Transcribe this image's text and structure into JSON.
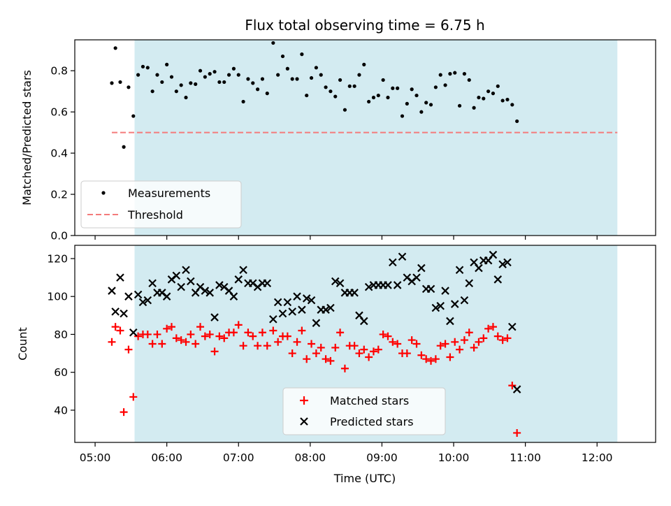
{
  "chart_data": [
    {
      "type": "scatter",
      "title": "Flux total observing time = 6.75 h",
      "ylabel": "Matched/Predicted stars",
      "ylim": [
        0,
        0.95
      ],
      "yticks": [
        "0.0",
        "0.2",
        "0.4",
        "0.6",
        "0.8"
      ],
      "shaded_span": {
        "start": "05:33",
        "end": "12:17",
        "color": "#d3ebf1"
      },
      "legend": {
        "placement": "lower-left"
      },
      "threshold": {
        "name": "Threshold",
        "value": 0.5,
        "x_start": "05:14",
        "x_end": "12:17",
        "color": "#f47b7b",
        "style": "dashed"
      },
      "series": [
        {
          "name": "Measurements",
          "color": "#000000",
          "marker": "dot",
          "points": [
            [
              "05:14",
              0.74
            ],
            [
              "05:17",
              0.91
            ],
            [
              "05:21",
              0.745
            ],
            [
              "05:24",
              0.43
            ],
            [
              "05:28",
              0.72
            ],
            [
              "05:32",
              0.58
            ],
            [
              "05:36",
              0.78
            ],
            [
              "05:40",
              0.82
            ],
            [
              "05:44",
              0.815
            ],
            [
              "05:48",
              0.7
            ],
            [
              "05:52",
              0.78
            ],
            [
              "05:56",
              0.745
            ],
            [
              "06:00",
              0.83
            ],
            [
              "06:04",
              0.77
            ],
            [
              "06:08",
              0.7
            ],
            [
              "06:12",
              0.73
            ],
            [
              "06:16",
              0.67
            ],
            [
              "06:20",
              0.74
            ],
            [
              "06:24",
              0.735
            ],
            [
              "06:28",
              0.8
            ],
            [
              "06:32",
              0.77
            ],
            [
              "06:36",
              0.785
            ],
            [
              "06:40",
              0.795
            ],
            [
              "06:44",
              0.745
            ],
            [
              "06:48",
              0.745
            ],
            [
              "06:52",
              0.78
            ],
            [
              "06:56",
              0.81
            ],
            [
              "07:00",
              0.78
            ],
            [
              "07:04",
              0.65
            ],
            [
              "07:08",
              0.76
            ],
            [
              "07:12",
              0.74
            ],
            [
              "07:16",
              0.71
            ],
            [
              "07:20",
              0.76
            ],
            [
              "07:24",
              0.69
            ],
            [
              "07:29",
              0.935
            ],
            [
              "07:33",
              0.78
            ],
            [
              "07:37",
              0.87
            ],
            [
              "07:41",
              0.81
            ],
            [
              "07:45",
              0.76
            ],
            [
              "07:49",
              0.76
            ],
            [
              "07:53",
              0.88
            ],
            [
              "07:57",
              0.68
            ],
            [
              "08:01",
              0.765
            ],
            [
              "08:05",
              0.815
            ],
            [
              "08:09",
              0.78
            ],
            [
              "08:13",
              0.72
            ],
            [
              "08:17",
              0.7
            ],
            [
              "08:21",
              0.675
            ],
            [
              "08:25",
              0.755
            ],
            [
              "08:29",
              0.61
            ],
            [
              "08:33",
              0.725
            ],
            [
              "08:37",
              0.725
            ],
            [
              "08:41",
              0.78
            ],
            [
              "08:45",
              0.83
            ],
            [
              "08:49",
              0.65
            ],
            [
              "08:53",
              0.67
            ],
            [
              "08:57",
              0.68
            ],
            [
              "09:01",
              0.755
            ],
            [
              "09:05",
              0.67
            ],
            [
              "09:09",
              0.715
            ],
            [
              "09:13",
              0.715
            ],
            [
              "09:17",
              0.58
            ],
            [
              "09:21",
              0.64
            ],
            [
              "09:25",
              0.71
            ],
            [
              "09:29",
              0.68
            ],
            [
              "09:33",
              0.6
            ],
            [
              "09:37",
              0.645
            ],
            [
              "09:41",
              0.635
            ],
            [
              "09:45",
              0.72
            ],
            [
              "09:49",
              0.78
            ],
            [
              "09:53",
              0.73
            ],
            [
              "09:57",
              0.785
            ],
            [
              "10:01",
              0.79
            ],
            [
              "10:05",
              0.63
            ],
            [
              "10:09",
              0.785
            ],
            [
              "10:13",
              0.755
            ],
            [
              "10:17",
              0.62
            ],
            [
              "10:21",
              0.67
            ],
            [
              "10:25",
              0.665
            ],
            [
              "10:29",
              0.7
            ],
            [
              "10:33",
              0.69
            ],
            [
              "10:37",
              0.725
            ],
            [
              "10:41",
              0.655
            ],
            [
              "10:45",
              0.66
            ],
            [
              "10:49",
              0.635
            ],
            [
              "10:53",
              0.555
            ]
          ]
        }
      ]
    },
    {
      "type": "scatter",
      "xlabel": "Time (UTC)",
      "ylabel": "Count",
      "ylim": [
        23,
        127
      ],
      "yticks": [
        "40",
        "60",
        "80",
        "100",
        "120"
      ],
      "xticks": [
        "05:00",
        "06:00",
        "07:00",
        "08:00",
        "09:00",
        "10:00",
        "11:00",
        "12:00"
      ],
      "shaded_span": {
        "start": "05:33",
        "end": "12:17",
        "color": "#d3ebf1"
      },
      "legend": {
        "placement": "lower-center"
      },
      "series": [
        {
          "name": "Matched stars",
          "color": "#ff0000",
          "marker": "plus",
          "points": [
            [
              "05:14",
              76
            ],
            [
              "05:17",
              84
            ],
            [
              "05:21",
              82
            ],
            [
              "05:24",
              39
            ],
            [
              "05:28",
              72
            ],
            [
              "05:32",
              47
            ],
            [
              "05:36",
              79
            ],
            [
              "05:40",
              80
            ],
            [
              "05:44",
              80
            ],
            [
              "05:48",
              75
            ],
            [
              "05:52",
              80
            ],
            [
              "05:56",
              75
            ],
            [
              "06:00",
              83
            ],
            [
              "06:04",
              84
            ],
            [
              "06:08",
              78
            ],
            [
              "06:12",
              77
            ],
            [
              "06:16",
              76
            ],
            [
              "06:20",
              80
            ],
            [
              "06:24",
              75
            ],
            [
              "06:28",
              84
            ],
            [
              "06:32",
              79
            ],
            [
              "06:36",
              80
            ],
            [
              "06:40",
              71
            ],
            [
              "06:44",
              79
            ],
            [
              "06:48",
              78
            ],
            [
              "06:52",
              81
            ],
            [
              "06:56",
              81
            ],
            [
              "07:00",
              85
            ],
            [
              "07:04",
              74
            ],
            [
              "07:08",
              81
            ],
            [
              "07:12",
              79
            ],
            [
              "07:16",
              74
            ],
            [
              "07:20",
              81
            ],
            [
              "07:24",
              74
            ],
            [
              "07:29",
              82
            ],
            [
              "07:33",
              76
            ],
            [
              "07:37",
              79
            ],
            [
              "07:41",
              79
            ],
            [
              "07:45",
              70
            ],
            [
              "07:49",
              76
            ],
            [
              "07:53",
              82
            ],
            [
              "07:57",
              67
            ],
            [
              "08:01",
              75
            ],
            [
              "08:05",
              70
            ],
            [
              "08:09",
              73
            ],
            [
              "08:13",
              67
            ],
            [
              "08:17",
              66
            ],
            [
              "08:21",
              73
            ],
            [
              "08:25",
              81
            ],
            [
              "08:29",
              62
            ],
            [
              "08:33",
              74
            ],
            [
              "08:37",
              74
            ],
            [
              "08:41",
              70
            ],
            [
              "08:45",
              72
            ],
            [
              "08:49",
              68
            ],
            [
              "08:53",
              71
            ],
            [
              "08:57",
              72
            ],
            [
              "09:01",
              80
            ],
            [
              "09:05",
              79
            ],
            [
              "09:09",
              76
            ],
            [
              "09:13",
              75
            ],
            [
              "09:17",
              70
            ],
            [
              "09:21",
              70
            ],
            [
              "09:25",
              77
            ],
            [
              "09:29",
              75
            ],
            [
              "09:33",
              69
            ],
            [
              "09:37",
              67
            ],
            [
              "09:41",
              66
            ],
            [
              "09:45",
              67
            ],
            [
              "09:49",
              74
            ],
            [
              "09:53",
              75
            ],
            [
              "09:57",
              68
            ],
            [
              "10:01",
              76
            ],
            [
              "10:05",
              72
            ],
            [
              "10:09",
              77
            ],
            [
              "10:13",
              81
            ],
            [
              "10:17",
              73
            ],
            [
              "10:21",
              76
            ],
            [
              "10:25",
              78
            ],
            [
              "10:29",
              83
            ],
            [
              "10:33",
              84
            ],
            [
              "10:37",
              79
            ],
            [
              "10:41",
              77
            ],
            [
              "10:45",
              78
            ],
            [
              "10:49",
              53
            ],
            [
              "10:53",
              28
            ]
          ]
        },
        {
          "name": "Predicted stars",
          "color": "#000000",
          "marker": "x",
          "points": [
            [
              "05:14",
              103
            ],
            [
              "05:17",
              92
            ],
            [
              "05:21",
              110
            ],
            [
              "05:24",
              91
            ],
            [
              "05:28",
              100
            ],
            [
              "05:32",
              81
            ],
            [
              "05:36",
              101
            ],
            [
              "05:40",
              97
            ],
            [
              "05:44",
              98
            ],
            [
              "05:48",
              107
            ],
            [
              "05:52",
              102
            ],
            [
              "05:56",
              102
            ],
            [
              "06:00",
              100
            ],
            [
              "06:04",
              109
            ],
            [
              "06:08",
              111
            ],
            [
              "06:12",
              105
            ],
            [
              "06:16",
              114
            ],
            [
              "06:20",
              108
            ],
            [
              "06:24",
              102
            ],
            [
              "06:28",
              105
            ],
            [
              "06:32",
              103
            ],
            [
              "06:36",
              102
            ],
            [
              "06:40",
              89
            ],
            [
              "06:44",
              106
            ],
            [
              "06:48",
              105
            ],
            [
              "06:52",
              103
            ],
            [
              "06:56",
              100
            ],
            [
              "07:00",
              109
            ],
            [
              "07:04",
              114
            ],
            [
              "07:08",
              107
            ],
            [
              "07:12",
              107
            ],
            [
              "07:16",
              105
            ],
            [
              "07:20",
              107
            ],
            [
              "07:24",
              107
            ],
            [
              "07:29",
              88
            ],
            [
              "07:33",
              97
            ],
            [
              "07:37",
              91
            ],
            [
              "07:41",
              97
            ],
            [
              "07:45",
              92
            ],
            [
              "07:49",
              100
            ],
            [
              "07:53",
              93
            ],
            [
              "07:57",
              99
            ],
            [
              "08:01",
              98
            ],
            [
              "08:05",
              86
            ],
            [
              "08:09",
              93
            ],
            [
              "08:13",
              93
            ],
            [
              "08:17",
              94
            ],
            [
              "08:21",
              108
            ],
            [
              "08:25",
              107
            ],
            [
              "08:29",
              102
            ],
            [
              "08:33",
              102
            ],
            [
              "08:37",
              102
            ],
            [
              "08:41",
              90
            ],
            [
              "08:45",
              87
            ],
            [
              "08:49",
              105
            ],
            [
              "08:53",
              106
            ],
            [
              "08:57",
              106
            ],
            [
              "09:01",
              106
            ],
            [
              "09:05",
              106
            ],
            [
              "09:09",
              118
            ],
            [
              "09:13",
              106
            ],
            [
              "09:17",
              121
            ],
            [
              "09:21",
              110
            ],
            [
              "09:25",
              108
            ],
            [
              "09:29",
              110
            ],
            [
              "09:33",
              115
            ],
            [
              "09:37",
              104
            ],
            [
              "09:41",
              104
            ],
            [
              "09:45",
              94
            ],
            [
              "09:49",
              95
            ],
            [
              "09:53",
              103
            ],
            [
              "09:57",
              87
            ],
            [
              "10:01",
              96
            ],
            [
              "10:05",
              114
            ],
            [
              "10:09",
              98
            ],
            [
              "10:13",
              107
            ],
            [
              "10:17",
              118
            ],
            [
              "10:21",
              115
            ],
            [
              "10:25",
              119
            ],
            [
              "10:29",
              119
            ],
            [
              "10:33",
              122
            ],
            [
              "10:37",
              109
            ],
            [
              "10:41",
              117
            ],
            [
              "10:45",
              118
            ],
            [
              "10:49",
              84
            ],
            [
              "10:53",
              51
            ]
          ]
        }
      ]
    }
  ]
}
